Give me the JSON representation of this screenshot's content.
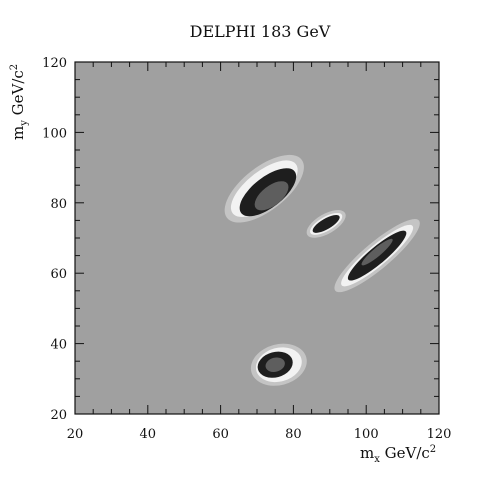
{
  "chart_data": {
    "type": "heatmap",
    "title": "DELPHI 183 GeV",
    "xlabel": "m_x GeV/c^2",
    "ylabel": "m_y GeV/c^2",
    "xlabel_parts": {
      "main": "m",
      "sub": "x",
      "unit": " GeV/c",
      "sup": "2"
    },
    "ylabel_parts": {
      "main": "m",
      "sub": "y",
      "unit": " GeV/c",
      "sup": "2"
    },
    "xlim": [
      20,
      120
    ],
    "ylim": [
      20,
      120
    ],
    "x_ticks": [
      20,
      40,
      60,
      80,
      100,
      120
    ],
    "y_ticks": [
      20,
      40,
      60,
      80,
      100,
      120
    ],
    "grid": false,
    "colors": {
      "background": "#a0a0a0",
      "level_1": "#c4c4c4",
      "level_2": "#f2f2f2",
      "level_3": "#1e1e1e",
      "level_4": "#5e5e5e"
    },
    "regions": [
      {
        "name": "upper-lobe",
        "levels": [
          {
            "level": 1,
            "center": [
              72,
              84
            ],
            "rx": 13.0,
            "ry": 6.2,
            "angle": -38
          },
          {
            "level": 2,
            "center": [
              72,
              84
            ],
            "rx": 11.0,
            "ry": 5.0,
            "angle": -38
          },
          {
            "level": 3,
            "center": [
              73,
              83
            ],
            "rx": 9.3,
            "ry": 4.3,
            "angle": -38
          },
          {
            "level": 4,
            "center": [
              74,
              82
            ],
            "rx": 5.5,
            "ry": 2.8,
            "angle": -38
          }
        ]
      },
      {
        "name": "lower-right-lobe",
        "levels": [
          {
            "level": 1,
            "center": [
              103,
              65
            ],
            "rx": 15.0,
            "ry": 3.8,
            "angle": -40
          },
          {
            "level": 2,
            "center": [
              103,
              65
            ],
            "rx": 12.7,
            "ry": 2.9,
            "angle": -40
          },
          {
            "level": 3,
            "center": [
              103,
              65
            ],
            "rx": 10.3,
            "ry": 2.4,
            "angle": -40
          },
          {
            "level": 4,
            "center": [
              103,
              66
            ],
            "rx": 5.5,
            "ry": 1.2,
            "angle": -40
          }
        ]
      },
      {
        "name": "bridge",
        "levels": [
          {
            "level": 1,
            "center": [
              89,
              74
            ],
            "rx": 6.0,
            "ry": 2.8,
            "angle": -30
          },
          {
            "level": 2,
            "center": [
              89,
              74
            ],
            "rx": 5.0,
            "ry": 2.0,
            "angle": -30
          },
          {
            "level": 3,
            "center": [
              89,
              74
            ],
            "rx": 4.2,
            "ry": 1.5,
            "angle": -30
          }
        ]
      },
      {
        "name": "low-mass-peak",
        "levels": [
          {
            "level": 1,
            "center": [
              76,
              34
            ],
            "rx": 7.8,
            "ry": 5.8,
            "angle": -15
          },
          {
            "level": 2,
            "center": [
              76,
              34
            ],
            "rx": 6.4,
            "ry": 4.8,
            "angle": -15
          },
          {
            "level": 3,
            "center": [
              75,
              34
            ],
            "rx": 4.9,
            "ry": 3.6,
            "angle": -15
          },
          {
            "level": 4,
            "center": [
              75,
              34
            ],
            "rx": 2.7,
            "ry": 2.0,
            "angle": -15
          }
        ]
      }
    ]
  }
}
